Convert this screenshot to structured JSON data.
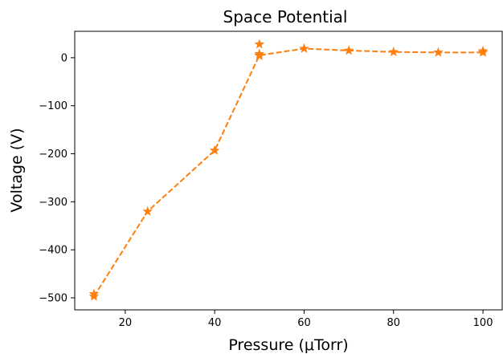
{
  "chart_data": {
    "type": "line",
    "title": "Space Potential",
    "xlabel": "Pressure (μTorr)",
    "ylabel": "Voltage (V)",
    "xlim": [
      8.7,
      104.3
    ],
    "ylim": [
      -525,
      55
    ],
    "xticks": [
      20,
      40,
      60,
      80,
      100
    ],
    "yticks": [
      0,
      -100,
      -200,
      -300,
      -400,
      -500
    ],
    "ytick_labels": [
      "0",
      "−100",
      "−200",
      "−300",
      "−400",
      "−500"
    ],
    "grid": false,
    "series": [
      {
        "color": "#ff7f0e",
        "line_style": "dashed",
        "marker": "star",
        "points": [
          {
            "x": 13,
            "y": -497
          },
          {
            "x": 13,
            "y": -492
          },
          {
            "x": 25,
            "y": -320
          },
          {
            "x": 40,
            "y": -193
          },
          {
            "x": 50,
            "y": 5
          },
          {
            "x": 50,
            "y": 28
          },
          {
            "x": 50,
            "y": 8
          },
          {
            "x": 50,
            "y": 4
          },
          {
            "x": 60,
            "y": 19
          },
          {
            "x": 70,
            "y": 15
          },
          {
            "x": 80,
            "y": 12
          },
          {
            "x": 90,
            "y": 11
          },
          {
            "x": 100,
            "y": 11
          },
          {
            "x": 100,
            "y": 14
          }
        ],
        "line_order": [
          0,
          2,
          3,
          4,
          8,
          9,
          10,
          11,
          12
        ]
      }
    ]
  }
}
